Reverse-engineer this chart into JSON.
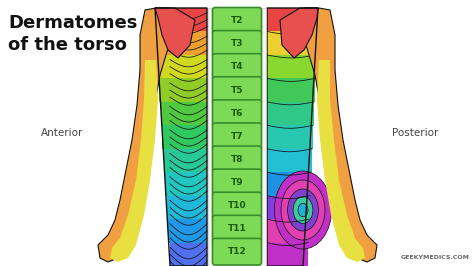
{
  "title_line1": "Dermatomes",
  "title_line2": "of the torso",
  "label_anterior": "Anterior",
  "label_posterior": "Posterior",
  "watermark": "GEEKYMEDICS.COM",
  "dermatomes": [
    "T2",
    "T3",
    "T4",
    "T5",
    "T6",
    "T7",
    "T8",
    "T9",
    "T10",
    "T11",
    "T12"
  ],
  "bg_color": "#ffffff",
  "title_color": "#111111",
  "label_color": "#444444",
  "badge_fill": "#7ed957",
  "badge_edge": "#3a8c2a",
  "badge_text": "#1a5c0a",
  "watermark_color": "#666666",
  "fig_width": 4.74,
  "fig_height": 2.66,
  "dpi": 100,
  "anterior_body_colors": [
    "#e84545",
    "#f0a030",
    "#d0d820",
    "#90cc28",
    "#50c840",
    "#30c860",
    "#28c898",
    "#22c8c0",
    "#20b8d8",
    "#2098e8",
    "#5070f0"
  ],
  "posterior_body_colors": [
    "#e84545",
    "#ecd030",
    "#88d830",
    "#40c858",
    "#30c888",
    "#28c8b0",
    "#22c0d0",
    "#2090e0",
    "#8040e0",
    "#e040b0",
    "#c030c8"
  ],
  "arm_color_upper": "#e85050",
  "arm_color_lower": "#f0a040",
  "arm_color_hand": "#e08840",
  "arm_color_yellow": "#e8e040",
  "concentric_colors": [
    "#c030c8",
    "#e040b0",
    "#8040d0",
    "#40c8a0",
    "#20b0d0"
  ],
  "spine_bg": "#f5f5f5",
  "line_color": "#111111",
  "outline_color": "#111111"
}
